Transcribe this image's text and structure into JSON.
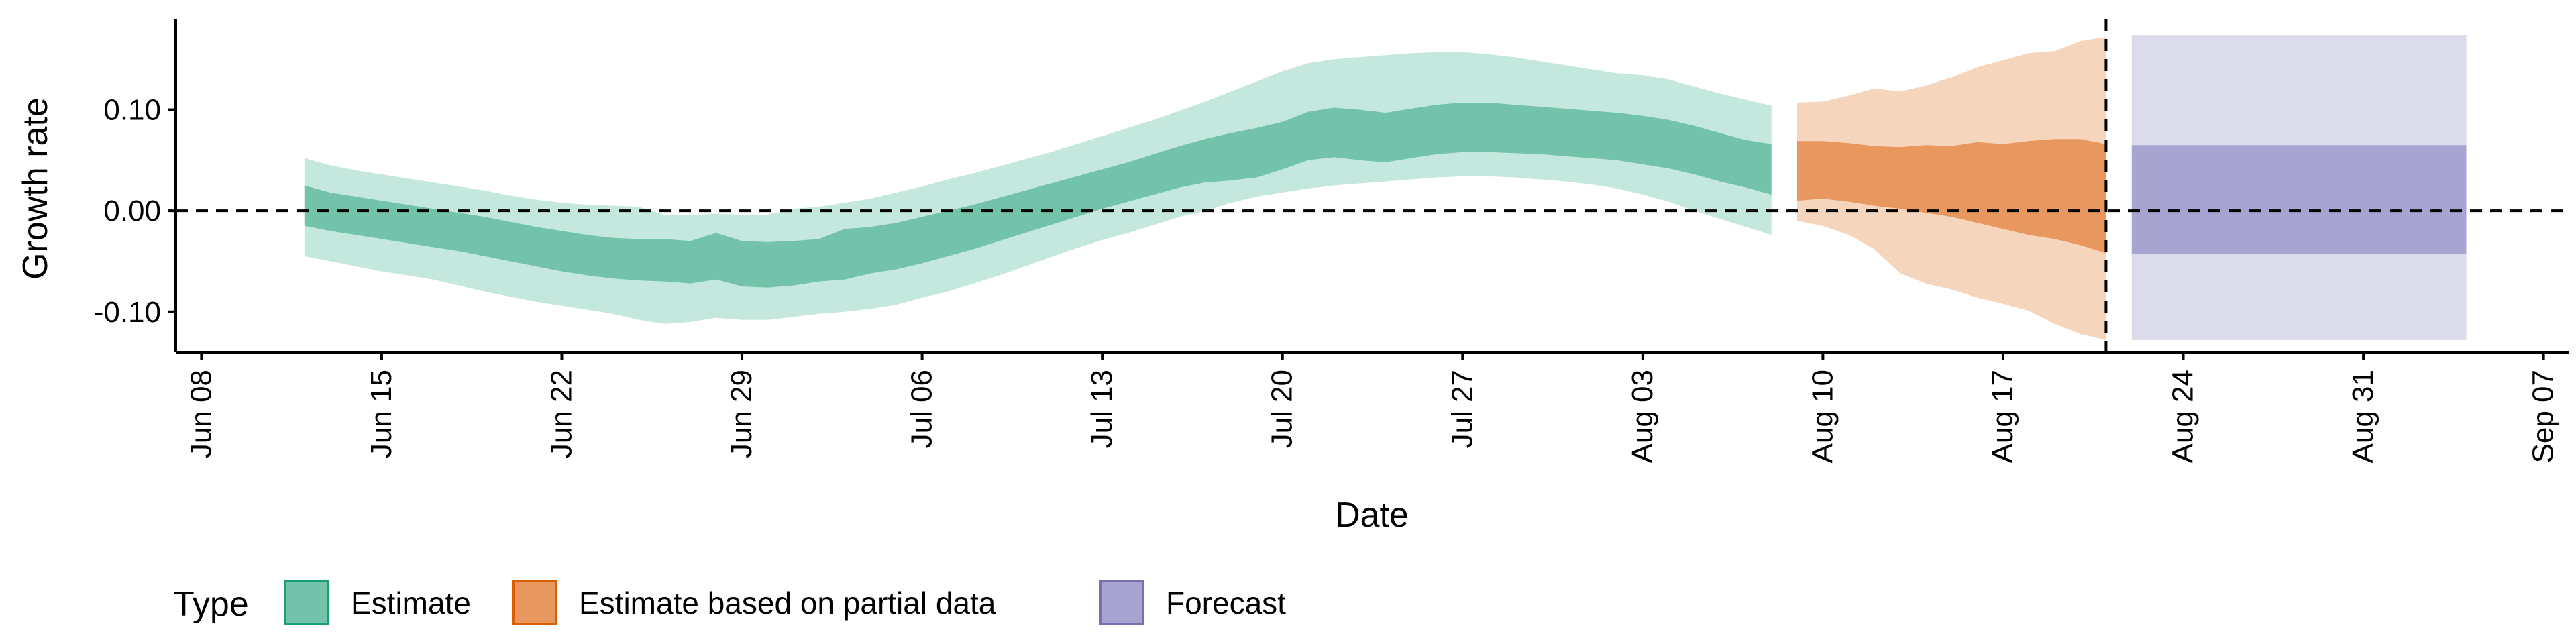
{
  "chart_data": {
    "type": "area",
    "title": "",
    "xlabel": "Date",
    "ylabel": "Growth rate",
    "x_axis_type": "date",
    "xlim": [
      "2020-06-07",
      "2020-09-08"
    ],
    "ylim": [
      -0.14,
      0.19
    ],
    "x_ticks": [
      {
        "date": "2020-06-08",
        "label": "Jun 08"
      },
      {
        "date": "2020-06-15",
        "label": "Jun 15"
      },
      {
        "date": "2020-06-22",
        "label": "Jun 22"
      },
      {
        "date": "2020-06-29",
        "label": "Jun 29"
      },
      {
        "date": "2020-07-06",
        "label": "Jul 06"
      },
      {
        "date": "2020-07-13",
        "label": "Jul 13"
      },
      {
        "date": "2020-07-20",
        "label": "Jul 20"
      },
      {
        "date": "2020-07-27",
        "label": "Jul 27"
      },
      {
        "date": "2020-08-03",
        "label": "Aug 03"
      },
      {
        "date": "2020-08-10",
        "label": "Aug 10"
      },
      {
        "date": "2020-08-17",
        "label": "Aug 17"
      },
      {
        "date": "2020-08-24",
        "label": "Aug 24"
      },
      {
        "date": "2020-08-31",
        "label": "Aug 31"
      },
      {
        "date": "2020-09-07",
        "label": "Sep 07"
      }
    ],
    "y_ticks": [
      {
        "value": -0.1,
        "label": "-0.10"
      },
      {
        "value": 0.0,
        "label": "0.00"
      },
      {
        "value": 0.1,
        "label": "0.10"
      }
    ],
    "reference_lines": [
      {
        "axis": "y",
        "value": 0.0,
        "style": "dashed"
      },
      {
        "axis": "x",
        "date": "2020-08-21",
        "style": "dashed"
      }
    ],
    "legend": {
      "title": "Type",
      "position": "bottom",
      "entries": [
        {
          "label": "Estimate",
          "color": "#1B9E77"
        },
        {
          "label": "Estimate based on partial data",
          "color": "#D95F02"
        },
        {
          "label": "Forecast",
          "color": "#7570B3"
        }
      ]
    },
    "series": [
      {
        "name": "Estimate",
        "color": "#1B9E77",
        "outer_color": "#C5E8DE",
        "inner_color": "#72C3AA",
        "points": [
          {
            "date": "2020-06-12",
            "outer": [
              -0.045,
              0.052
            ],
            "inner": [
              -0.015,
              0.025
            ]
          },
          {
            "date": "2020-06-13",
            "outer": [
              -0.05,
              0.045
            ],
            "inner": [
              -0.02,
              0.018
            ]
          },
          {
            "date": "2020-06-14",
            "outer": [
              -0.055,
              0.04
            ],
            "inner": [
              -0.024,
              0.014
            ]
          },
          {
            "date": "2020-06-15",
            "outer": [
              -0.06,
              0.036
            ],
            "inner": [
              -0.028,
              0.01
            ]
          },
          {
            "date": "2020-06-16",
            "outer": [
              -0.064,
              0.032
            ],
            "inner": [
              -0.032,
              0.006
            ]
          },
          {
            "date": "2020-06-17",
            "outer": [
              -0.068,
              0.028
            ],
            "inner": [
              -0.036,
              0.002
            ]
          },
          {
            "date": "2020-06-18",
            "outer": [
              -0.074,
              0.024
            ],
            "inner": [
              -0.04,
              -0.002
            ]
          },
          {
            "date": "2020-06-19",
            "outer": [
              -0.08,
              0.02
            ],
            "inner": [
              -0.045,
              -0.006
            ]
          },
          {
            "date": "2020-06-20",
            "outer": [
              -0.085,
              0.015
            ],
            "inner": [
              -0.05,
              -0.011
            ]
          },
          {
            "date": "2020-06-21",
            "outer": [
              -0.09,
              0.011
            ],
            "inner": [
              -0.055,
              -0.016
            ]
          },
          {
            "date": "2020-06-22",
            "outer": [
              -0.094,
              0.008
            ],
            "inner": [
              -0.06,
              -0.02
            ]
          },
          {
            "date": "2020-06-23",
            "outer": [
              -0.098,
              0.006
            ],
            "inner": [
              -0.064,
              -0.024
            ]
          },
          {
            "date": "2020-06-24",
            "outer": [
              -0.102,
              0.005
            ],
            "inner": [
              -0.067,
              -0.027
            ]
          },
          {
            "date": "2020-06-25",
            "outer": [
              -0.108,
              0.004
            ],
            "inner": [
              -0.069,
              -0.028
            ]
          },
          {
            "date": "2020-06-26",
            "outer": [
              -0.112,
              -0.004
            ],
            "inner": [
              -0.07,
              -0.028
            ]
          },
          {
            "date": "2020-06-27",
            "outer": [
              -0.11,
              -0.004
            ],
            "inner": [
              -0.072,
              -0.03
            ]
          },
          {
            "date": "2020-06-28",
            "outer": [
              -0.106,
              -0.003
            ],
            "inner": [
              -0.068,
              -0.022
            ]
          },
          {
            "date": "2020-06-29",
            "outer": [
              -0.108,
              -0.004
            ],
            "inner": [
              -0.075,
              -0.03
            ]
          },
          {
            "date": "2020-06-30",
            "outer": [
              -0.108,
              -0.004
            ],
            "inner": [
              -0.076,
              -0.031
            ]
          },
          {
            "date": "2020-07-01",
            "outer": [
              -0.105,
              0.002
            ],
            "inner": [
              -0.074,
              -0.03
            ]
          },
          {
            "date": "2020-07-02",
            "outer": [
              -0.102,
              0.004
            ],
            "inner": [
              -0.07,
              -0.028
            ]
          },
          {
            "date": "2020-07-03",
            "outer": [
              -0.1,
              0.008
            ],
            "inner": [
              -0.068,
              -0.018
            ]
          },
          {
            "date": "2020-07-04",
            "outer": [
              -0.097,
              0.012
            ],
            "inner": [
              -0.062,
              -0.016
            ]
          },
          {
            "date": "2020-07-05",
            "outer": [
              -0.093,
              0.018
            ],
            "inner": [
              -0.058,
              -0.012
            ]
          },
          {
            "date": "2020-07-06",
            "outer": [
              -0.086,
              0.024
            ],
            "inner": [
              -0.052,
              -0.006
            ]
          },
          {
            "date": "2020-07-07",
            "outer": [
              -0.08,
              0.031
            ],
            "inner": [
              -0.045,
              0.0
            ]
          },
          {
            "date": "2020-07-08",
            "outer": [
              -0.072,
              0.037
            ],
            "inner": [
              -0.038,
              0.006
            ]
          },
          {
            "date": "2020-07-09",
            "outer": [
              -0.064,
              0.044
            ],
            "inner": [
              -0.03,
              0.013
            ]
          },
          {
            "date": "2020-07-10",
            "outer": [
              -0.055,
              0.051
            ],
            "inner": [
              -0.022,
              0.02
            ]
          },
          {
            "date": "2020-07-11",
            "outer": [
              -0.046,
              0.058
            ],
            "inner": [
              -0.014,
              0.027
            ]
          },
          {
            "date": "2020-07-12",
            "outer": [
              -0.037,
              0.066
            ],
            "inner": [
              -0.006,
              0.034
            ]
          },
          {
            "date": "2020-07-13",
            "outer": [
              -0.029,
              0.074
            ],
            "inner": [
              0.002,
              0.041
            ]
          },
          {
            "date": "2020-07-14",
            "outer": [
              -0.022,
              0.082
            ],
            "inner": [
              0.009,
              0.048
            ]
          },
          {
            "date": "2020-07-15",
            "outer": [
              -0.014,
              0.09
            ],
            "inner": [
              0.016,
              0.056
            ]
          },
          {
            "date": "2020-07-16",
            "outer": [
              -0.006,
              0.099
            ],
            "inner": [
              0.023,
              0.064
            ]
          },
          {
            "date": "2020-07-17",
            "outer": [
              0.0,
              0.108
            ],
            "inner": [
              0.028,
              0.071
            ]
          },
          {
            "date": "2020-07-18",
            "outer": [
              0.008,
              0.118
            ],
            "inner": [
              0.03,
              0.077
            ]
          },
          {
            "date": "2020-07-19",
            "outer": [
              0.014,
              0.128
            ],
            "inner": [
              0.033,
              0.082
            ]
          },
          {
            "date": "2020-07-20",
            "outer": [
              0.018,
              0.138
            ],
            "inner": [
              0.041,
              0.088
            ]
          },
          {
            "date": "2020-07-21",
            "outer": [
              0.022,
              0.146
            ],
            "inner": [
              0.05,
              0.098
            ]
          },
          {
            "date": "2020-07-22",
            "outer": [
              0.025,
              0.15
            ],
            "inner": [
              0.053,
              0.102
            ]
          },
          {
            "date": "2020-07-23",
            "outer": [
              0.027,
              0.152
            ],
            "inner": [
              0.05,
              0.1
            ]
          },
          {
            "date": "2020-07-24",
            "outer": [
              0.029,
              0.154
            ],
            "inner": [
              0.048,
              0.097
            ]
          },
          {
            "date": "2020-07-25",
            "outer": [
              0.031,
              0.156
            ],
            "inner": [
              0.052,
              0.101
            ]
          },
          {
            "date": "2020-07-26",
            "outer": [
              0.033,
              0.157
            ],
            "inner": [
              0.056,
              0.105
            ]
          },
          {
            "date": "2020-07-27",
            "outer": [
              0.034,
              0.157
            ],
            "inner": [
              0.058,
              0.107
            ]
          },
          {
            "date": "2020-07-28",
            "outer": [
              0.034,
              0.155
            ],
            "inner": [
              0.058,
              0.107
            ]
          },
          {
            "date": "2020-07-29",
            "outer": [
              0.033,
              0.152
            ],
            "inner": [
              0.057,
              0.105
            ]
          },
          {
            "date": "2020-07-30",
            "outer": [
              0.031,
              0.148
            ],
            "inner": [
              0.056,
              0.103
            ]
          },
          {
            "date": "2020-07-31",
            "outer": [
              0.029,
              0.144
            ],
            "inner": [
              0.054,
              0.101
            ]
          },
          {
            "date": "2020-08-01",
            "outer": [
              0.026,
              0.14
            ],
            "inner": [
              0.052,
              0.099
            ]
          },
          {
            "date": "2020-08-02",
            "outer": [
              0.022,
              0.136
            ],
            "inner": [
              0.05,
              0.097
            ]
          },
          {
            "date": "2020-08-03",
            "outer": [
              0.016,
              0.134
            ],
            "inner": [
              0.046,
              0.094
            ]
          },
          {
            "date": "2020-08-04",
            "outer": [
              0.009,
              0.13
            ],
            "inner": [
              0.042,
              0.09
            ]
          },
          {
            "date": "2020-08-05",
            "outer": [
              0.0,
              0.123
            ],
            "inner": [
              0.036,
              0.084
            ]
          },
          {
            "date": "2020-08-06",
            "outer": [
              -0.008,
              0.116
            ],
            "inner": [
              0.029,
              0.077
            ]
          },
          {
            "date": "2020-08-07",
            "outer": [
              -0.016,
              0.11
            ],
            "inner": [
              0.023,
              0.07
            ]
          },
          {
            "date": "2020-08-08",
            "outer": [
              -0.024,
              0.104
            ],
            "inner": [
              0.016,
              0.066
            ]
          }
        ]
      },
      {
        "name": "Estimate based on partial data",
        "color": "#D95F02",
        "outer_color": "#F6D5BD",
        "inner_color": "#E8975F",
        "points": [
          {
            "date": "2020-08-09",
            "outer": [
              -0.01,
              0.107
            ],
            "inner": [
              0.01,
              0.069
            ]
          },
          {
            "date": "2020-08-10",
            "outer": [
              -0.015,
              0.108
            ],
            "inner": [
              0.012,
              0.069
            ]
          },
          {
            "date": "2020-08-11",
            "outer": [
              -0.024,
              0.114
            ],
            "inner": [
              0.009,
              0.067
            ]
          },
          {
            "date": "2020-08-12",
            "outer": [
              -0.038,
              0.121
            ],
            "inner": [
              0.005,
              0.064
            ]
          },
          {
            "date": "2020-08-13",
            "outer": [
              -0.062,
              0.118
            ],
            "inner": [
              0.002,
              0.063
            ]
          },
          {
            "date": "2020-08-14",
            "outer": [
              -0.072,
              0.124
            ],
            "inner": [
              -0.002,
              0.065
            ]
          },
          {
            "date": "2020-08-15",
            "outer": [
              -0.078,
              0.132
            ],
            "inner": [
              -0.006,
              0.064
            ]
          },
          {
            "date": "2020-08-16",
            "outer": [
              -0.086,
              0.142
            ],
            "inner": [
              -0.012,
              0.068
            ]
          },
          {
            "date": "2020-08-17",
            "outer": [
              -0.092,
              0.149
            ],
            "inner": [
              -0.018,
              0.066
            ]
          },
          {
            "date": "2020-08-18",
            "outer": [
              -0.099,
              0.156
            ],
            "inner": [
              -0.024,
              0.069
            ]
          },
          {
            "date": "2020-08-19",
            "outer": [
              -0.112,
              0.158
            ],
            "inner": [
              -0.028,
              0.071
            ]
          },
          {
            "date": "2020-08-20",
            "outer": [
              -0.122,
              0.168
            ],
            "inner": [
              -0.034,
              0.071
            ]
          },
          {
            "date": "2020-08-21",
            "outer": [
              -0.128,
              0.172
            ],
            "inner": [
              -0.042,
              0.066
            ]
          }
        ]
      },
      {
        "name": "Forecast",
        "color": "#7570B3",
        "outer_color": "#DCDBEC",
        "inner_color": "#A7A4D1",
        "points": [
          {
            "date": "2020-08-22",
            "outer": [
              -0.128,
              0.174
            ],
            "inner": [
              -0.043,
              0.065
            ]
          },
          {
            "date": "2020-09-04",
            "outer": [
              -0.128,
              0.174
            ],
            "inner": [
              -0.043,
              0.065
            ]
          }
        ]
      }
    ]
  }
}
